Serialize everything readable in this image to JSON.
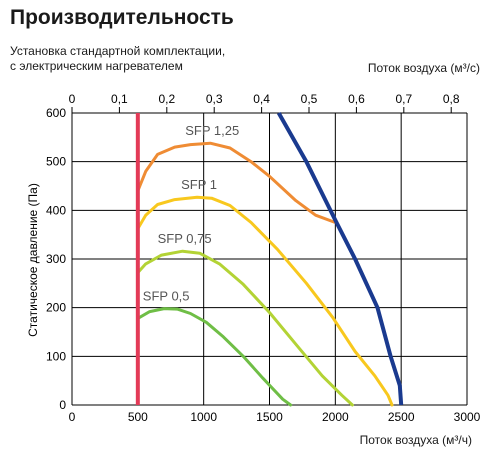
{
  "chart_data": {
    "type": "line",
    "title": "Производительность",
    "subtitle": [
      "Установка стандартной комплектации,",
      "с электрическим нагревателем"
    ],
    "xlabel": "Поток воздуха (м³/ч)",
    "x2label": "Поток воздуха (м³/с)",
    "ylabel": "Статическое давление (Па)",
    "xlim": [
      0,
      3000
    ],
    "x2lim": [
      0,
      0.8333
    ],
    "ylim": [
      0,
      600
    ],
    "xticks": [
      "0",
      "500",
      "1000",
      "1500",
      "2000",
      "2500",
      "3000"
    ],
    "x2ticks": [
      "0",
      "0,1",
      "0,2",
      "0,3",
      "0,4",
      "0,5",
      "0,6",
      "0,7",
      "0,8"
    ],
    "yticks": [
      "0",
      "100",
      "200",
      "300",
      "400",
      "500",
      "600"
    ],
    "grid": true,
    "limit_line": {
      "x": 500,
      "color": "#e33a57"
    },
    "max_curve": {
      "color": "#1a3a8f",
      "points": [
        [
          1570,
          600
        ],
        [
          1780,
          500
        ],
        [
          2000,
          380
        ],
        [
          2150,
          300
        ],
        [
          2320,
          200
        ],
        [
          2420,
          100
        ],
        [
          2490,
          40
        ],
        [
          2500,
          0
        ]
      ]
    },
    "series": [
      {
        "name": "SFP 1,25",
        "color": "#ef8c34",
        "points": [
          [
            500,
            440
          ],
          [
            560,
            480
          ],
          [
            650,
            515
          ],
          [
            780,
            530
          ],
          [
            900,
            535
          ],
          [
            1050,
            538
          ],
          [
            1200,
            528
          ],
          [
            1360,
            500
          ],
          [
            1500,
            470
          ],
          [
            1700,
            420
          ],
          [
            1850,
            390
          ],
          [
            2000,
            375
          ]
        ]
      },
      {
        "name": "SFP 1",
        "color": "#f8c81e",
        "points": [
          [
            500,
            362
          ],
          [
            560,
            390
          ],
          [
            650,
            412
          ],
          [
            780,
            422
          ],
          [
            950,
            427
          ],
          [
            1060,
            425
          ],
          [
            1200,
            410
          ],
          [
            1360,
            375
          ],
          [
            1560,
            320
          ],
          [
            1780,
            250
          ],
          [
            1980,
            180
          ],
          [
            2150,
            110
          ],
          [
            2300,
            60
          ],
          [
            2400,
            20
          ],
          [
            2430,
            0
          ]
        ]
      },
      {
        "name": "SFP 0,75",
        "color": "#b3d335",
        "points": [
          [
            500,
            272
          ],
          [
            560,
            290
          ],
          [
            680,
            308
          ],
          [
            840,
            316
          ],
          [
            970,
            312
          ],
          [
            1120,
            290
          ],
          [
            1300,
            248
          ],
          [
            1500,
            190
          ],
          [
            1700,
            125
          ],
          [
            1900,
            60
          ],
          [
            2050,
            20
          ],
          [
            2130,
            0
          ]
        ]
      },
      {
        "name": "SFP 0,5",
        "color": "#6fbe46",
        "points": [
          [
            500,
            178
          ],
          [
            590,
            192
          ],
          [
            700,
            198
          ],
          [
            800,
            197
          ],
          [
            900,
            188
          ],
          [
            1020,
            170
          ],
          [
            1150,
            140
          ],
          [
            1300,
            100
          ],
          [
            1450,
            55
          ],
          [
            1600,
            12
          ],
          [
            1660,
            0
          ]
        ]
      }
    ]
  }
}
